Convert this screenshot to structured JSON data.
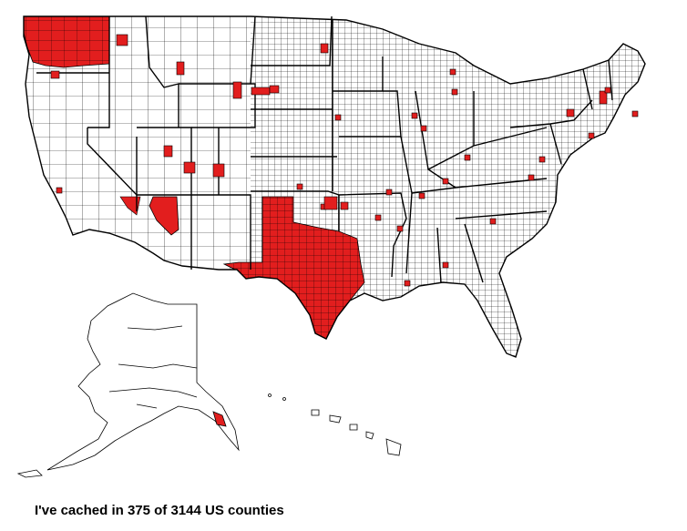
{
  "caption": "I've cached in 375 of 3144 US counties",
  "colors": {
    "cached": "#e21e1e",
    "uncached": "#ffffff",
    "border": "#000000",
    "background": "#ffffff"
  },
  "legend": {
    "cached_count": 375,
    "total_counties": 3144
  },
  "regions": [
    {
      "name": "Washington",
      "cached": true
    },
    {
      "name": "Texas",
      "cached": true
    },
    {
      "name": "Southern Nevada",
      "cached": true
    },
    {
      "name": "Oregon",
      "cached": false
    },
    {
      "name": "California",
      "cached": false
    },
    {
      "name": "Idaho",
      "cached": false
    },
    {
      "name": "Montana",
      "cached": false
    },
    {
      "name": "Wyoming",
      "cached": false
    },
    {
      "name": "Utah",
      "cached": false
    },
    {
      "name": "Arizona",
      "cached": false
    },
    {
      "name": "Colorado",
      "cached": false
    },
    {
      "name": "New Mexico",
      "cached": false
    },
    {
      "name": "Great Plains",
      "cached": false
    },
    {
      "name": "Midwest",
      "cached": false
    },
    {
      "name": "South",
      "cached": false
    },
    {
      "name": "Florida",
      "cached": false
    },
    {
      "name": "Northeast",
      "cached": false
    },
    {
      "name": "Alaska",
      "cached": false
    },
    {
      "name": "Hawaii",
      "cached": false
    }
  ]
}
